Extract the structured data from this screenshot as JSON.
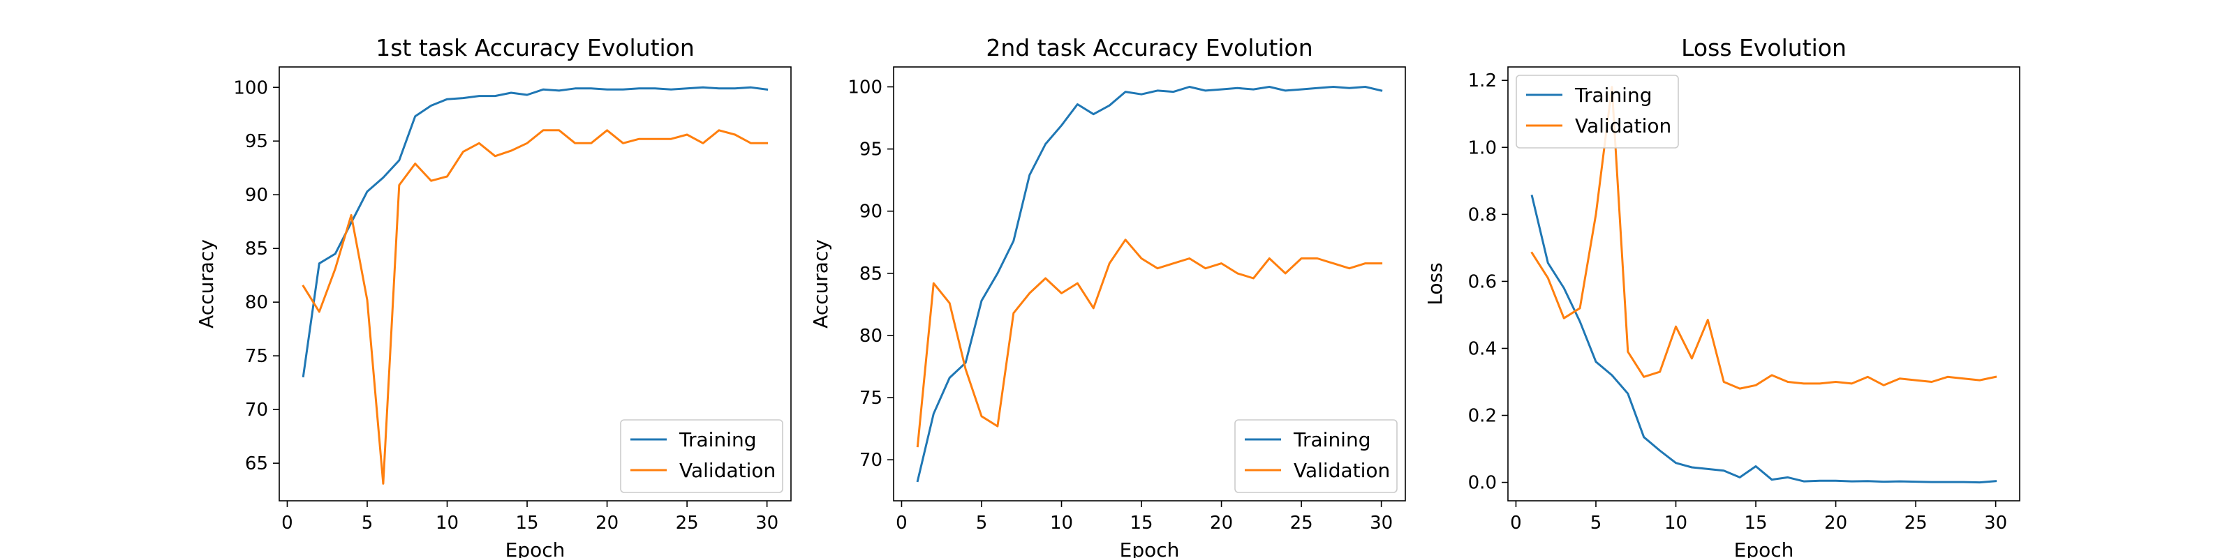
{
  "chart_data": [
    {
      "type": "line",
      "title": "1st task Accuracy Evolution",
      "xlabel": "Epoch",
      "ylabel": "Accuracy",
      "xlim": [
        -0.5,
        31.5
      ],
      "ylim": [
        61.5,
        101.9
      ],
      "xticks": [
        0,
        5,
        10,
        15,
        20,
        25,
        30
      ],
      "yticks": [
        65,
        70,
        75,
        80,
        85,
        90,
        95,
        100
      ],
      "legend": "lower-right",
      "x": [
        1,
        2,
        3,
        4,
        5,
        6,
        7,
        8,
        9,
        10,
        11,
        12,
        13,
        14,
        15,
        16,
        17,
        18,
        19,
        20,
        21,
        22,
        23,
        24,
        25,
        26,
        27,
        28,
        29,
        30
      ],
      "series": [
        {
          "name": "Training",
          "color": "#1f77b4",
          "values": [
            73.1,
            83.6,
            84.5,
            87.4,
            90.3,
            91.6,
            93.2,
            97.3,
            98.3,
            98.9,
            99.0,
            99.2,
            99.2,
            99.5,
            99.3,
            99.8,
            99.7,
            99.9,
            99.9,
            99.8,
            99.8,
            99.9,
            99.9,
            99.8,
            99.9,
            100.0,
            99.9,
            99.9,
            100.0,
            99.8
          ]
        },
        {
          "name": "Validation",
          "color": "#ff7f0e",
          "values": [
            81.5,
            79.1,
            83.1,
            88.1,
            80.2,
            63.1,
            90.9,
            92.9,
            91.3,
            91.7,
            94.0,
            94.8,
            93.6,
            94.1,
            94.8,
            96.0,
            96.0,
            94.8,
            94.8,
            96.0,
            94.8,
            95.2,
            95.2,
            95.2,
            95.6,
            94.8,
            96.0,
            95.6,
            94.8,
            94.8
          ]
        }
      ]
    },
    {
      "type": "line",
      "title": "2nd task Accuracy Evolution",
      "xlabel": "Epoch",
      "ylabel": "Accuracy",
      "xlim": [
        -0.5,
        31.5
      ],
      "ylim": [
        66.7,
        101.6
      ],
      "xticks": [
        0,
        5,
        10,
        15,
        20,
        25,
        30
      ],
      "yticks": [
        70,
        75,
        80,
        85,
        90,
        95,
        100
      ],
      "legend": "lower-right",
      "x": [
        1,
        2,
        3,
        4,
        5,
        6,
        7,
        8,
        9,
        10,
        11,
        12,
        13,
        14,
        15,
        16,
        17,
        18,
        19,
        20,
        21,
        22,
        23,
        24,
        25,
        26,
        27,
        28,
        29,
        30
      ],
      "series": [
        {
          "name": "Training",
          "color": "#1f77b4",
          "values": [
            68.3,
            73.7,
            76.6,
            77.8,
            82.8,
            85.0,
            87.6,
            92.9,
            95.4,
            96.9,
            98.6,
            97.8,
            98.5,
            99.6,
            99.4,
            99.7,
            99.6,
            100.0,
            99.7,
            99.8,
            99.9,
            99.8,
            100.0,
            99.7,
            99.8,
            99.9,
            100.0,
            99.9,
            100.0,
            99.7
          ]
        },
        {
          "name": "Validation",
          "color": "#ff7f0e",
          "values": [
            71.1,
            84.2,
            82.6,
            77.3,
            73.5,
            72.7,
            81.8,
            83.4,
            84.6,
            83.4,
            84.2,
            82.2,
            85.8,
            87.7,
            86.2,
            85.4,
            85.8,
            86.2,
            85.4,
            85.8,
            85.0,
            84.6,
            86.2,
            85.0,
            86.2,
            86.2,
            85.8,
            85.4,
            85.8,
            85.8
          ]
        }
      ]
    },
    {
      "type": "line",
      "title": "Loss Evolution",
      "xlabel": "Epoch",
      "ylabel": "Loss",
      "xlim": [
        -0.5,
        31.5
      ],
      "ylim": [
        -0.055,
        1.24
      ],
      "xticks": [
        0,
        5,
        10,
        15,
        20,
        25,
        30
      ],
      "yticks": [
        0.0,
        0.2,
        0.4,
        0.6,
        0.8,
        1.0,
        1.2
      ],
      "legend": "top-left",
      "x": [
        1,
        2,
        3,
        4,
        5,
        6,
        7,
        8,
        9,
        10,
        11,
        12,
        13,
        14,
        15,
        16,
        17,
        18,
        19,
        20,
        21,
        22,
        23,
        24,
        25,
        26,
        27,
        28,
        29,
        30
      ],
      "series": [
        {
          "name": "Training",
          "color": "#1f77b4",
          "values": [
            0.855,
            0.655,
            0.58,
            0.48,
            0.36,
            0.32,
            0.265,
            0.135,
            0.095,
            0.058,
            0.045,
            0.04,
            0.035,
            0.015,
            0.048,
            0.008,
            0.015,
            0.003,
            0.005,
            0.005,
            0.003,
            0.004,
            0.002,
            0.003,
            0.002,
            0.001,
            0.001,
            0.001,
            0.0,
            0.004
          ]
        },
        {
          "name": "Validation",
          "color": "#ff7f0e",
          "values": [
            0.685,
            0.61,
            0.49,
            0.52,
            0.8,
            1.18,
            0.39,
            0.315,
            0.33,
            0.465,
            0.37,
            0.485,
            0.3,
            0.28,
            0.29,
            0.32,
            0.3,
            0.295,
            0.295,
            0.3,
            0.295,
            0.315,
            0.29,
            0.31,
            0.305,
            0.3,
            0.315,
            0.31,
            0.305,
            0.315
          ]
        }
      ]
    }
  ]
}
